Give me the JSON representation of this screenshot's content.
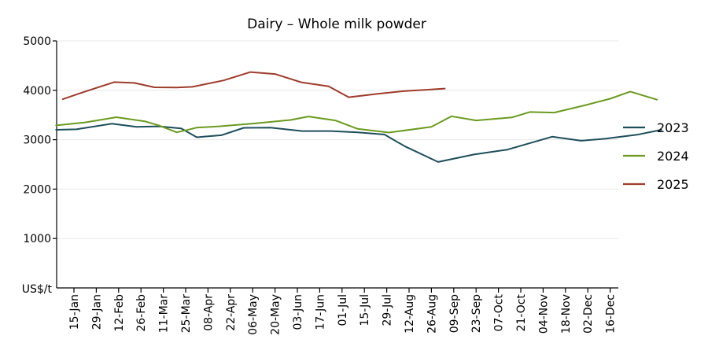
{
  "chart_data": {
    "type": "line",
    "title": "Dairy – Whole milk powder",
    "ylabel": "US$/t",
    "xlabel": "",
    "ylim": [
      0,
      5000
    ],
    "yticks": [
      1000,
      2000,
      3000,
      4000,
      5000
    ],
    "grid": true,
    "legend_position": "right",
    "categories": [
      "15-Jan",
      "29-Jan",
      "12-Feb",
      "26-Feb",
      "11-Mar",
      "25-Mar",
      "08-Apr",
      "22-Apr",
      "06-May",
      "20-May",
      "03-Jun",
      "17-Jun",
      "01-Jul",
      "15-Jul",
      "29-Jul",
      "12-Aug",
      "26-Aug",
      "09-Sep",
      "23-Sep",
      "07-Oct",
      "21-Oct",
      "04-Nov",
      "18-Nov",
      "02-Dec",
      "16-Dec"
    ],
    "series": [
      {
        "name": "2023",
        "color": "#1d4e5a",
        "points": [
          [
            -0.8,
            3200
          ],
          [
            0.1,
            3210
          ],
          [
            1.7,
            3325
          ],
          [
            2.8,
            3260
          ],
          [
            3.8,
            3270
          ],
          [
            4.8,
            3230
          ],
          [
            5.5,
            3050
          ],
          [
            6.6,
            3090
          ],
          [
            7.6,
            3240
          ],
          [
            8.8,
            3245
          ],
          [
            10.2,
            3175
          ],
          [
            11.5,
            3175
          ],
          [
            12.7,
            3150
          ],
          [
            13.9,
            3105
          ],
          [
            14.8,
            2870
          ],
          [
            16.3,
            2550
          ],
          [
            17.9,
            2700
          ],
          [
            19.4,
            2800
          ],
          [
            21.4,
            3060
          ],
          [
            22.7,
            2980
          ],
          [
            23.8,
            3020
          ],
          [
            25.2,
            3100
          ],
          [
            26.3,
            3200
          ]
        ]
      },
      {
        "name": "2024",
        "color": "#6a9a1f",
        "points": [
          [
            -0.8,
            3290
          ],
          [
            0.5,
            3350
          ],
          [
            1.9,
            3455
          ],
          [
            3.2,
            3370
          ],
          [
            3.8,
            3290
          ],
          [
            4.6,
            3150
          ],
          [
            5.0,
            3190
          ],
          [
            5.5,
            3245
          ],
          [
            6.5,
            3270
          ],
          [
            8.1,
            3330
          ],
          [
            9.7,
            3400
          ],
          [
            10.5,
            3470
          ],
          [
            11.7,
            3390
          ],
          [
            12.7,
            3220
          ],
          [
            14.1,
            3145
          ],
          [
            16.0,
            3260
          ],
          [
            16.9,
            3475
          ],
          [
            18.0,
            3390
          ],
          [
            19.6,
            3450
          ],
          [
            20.4,
            3560
          ],
          [
            21.5,
            3550
          ],
          [
            22.9,
            3700
          ],
          [
            24.0,
            3830
          ],
          [
            24.9,
            3975
          ],
          [
            26.1,
            3810
          ]
        ]
      },
      {
        "name": "2025",
        "color": "#9e3b2a",
        "points": [
          [
            -0.5,
            3820
          ],
          [
            0.4,
            3960
          ],
          [
            1.8,
            4165
          ],
          [
            2.7,
            4150
          ],
          [
            3.6,
            4060
          ],
          [
            4.6,
            4055
          ],
          [
            5.3,
            4070
          ],
          [
            6.7,
            4200
          ],
          [
            7.9,
            4370
          ],
          [
            9.0,
            4330
          ],
          [
            10.2,
            4160
          ],
          [
            11.4,
            4080
          ],
          [
            12.3,
            3860
          ],
          [
            13.6,
            3930
          ],
          [
            14.8,
            3985
          ],
          [
            15.7,
            4010
          ],
          [
            16.6,
            4035
          ]
        ]
      }
    ]
  }
}
